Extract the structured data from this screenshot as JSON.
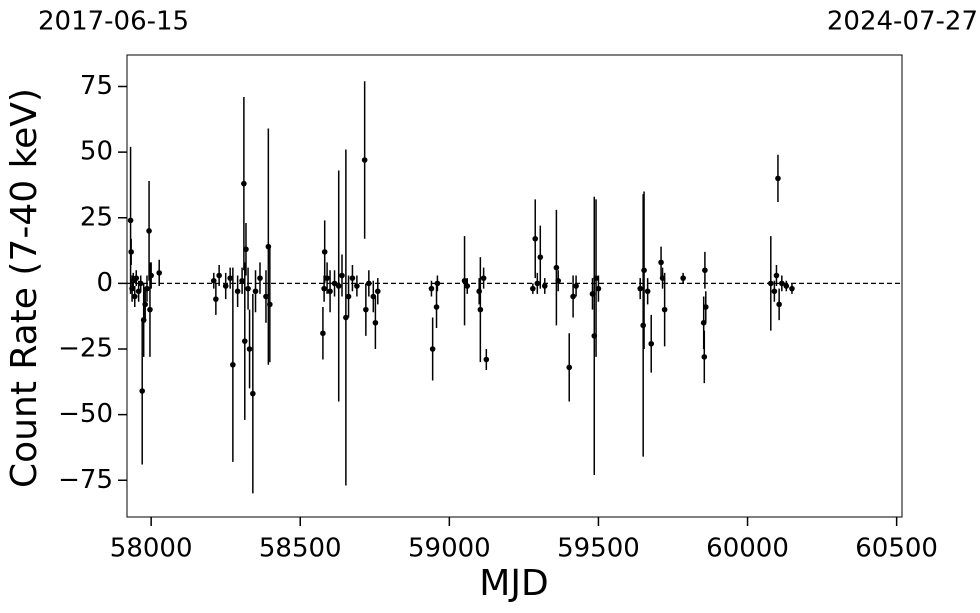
{
  "chart_data": {
    "type": "errorbar",
    "xlabel": "MJD",
    "ylabel": "Count Rate (7-40 keV)",
    "annotations": [
      "2017-06-15",
      "2024-07-27"
    ],
    "xlim": [
      57919,
      60518
    ],
    "ylim": [
      -89,
      87
    ],
    "xticks": [
      58000,
      58500,
      59000,
      59500,
      60000,
      60500
    ],
    "yticks": [
      {
        "value": -75,
        "label": "−75"
      },
      {
        "value": -50,
        "label": "−50"
      },
      {
        "value": -25,
        "label": "−25"
      },
      0,
      25,
      50,
      75
    ],
    "hline": 0,
    "grid": false,
    "series": [
      {
        "color": "#000000",
        "x": [
          57931,
          57933,
          57936,
          57940,
          57945,
          57950,
          57958,
          57965,
          57970,
          57975,
          57980,
          57986,
          57993,
          57996,
          58000,
          58027,
          58210,
          58217,
          58228,
          58250,
          58265,
          58274,
          58290,
          58305,
          58311,
          58314,
          58318,
          58325,
          58330,
          58341,
          58350,
          58365,
          58385,
          58393,
          58398,
          58576,
          58580,
          58582,
          58590,
          58600,
          58615,
          58629,
          58640,
          58653,
          58662,
          58675,
          58690,
          58716,
          58720,
          58730,
          58745,
          58752,
          58760,
          58940,
          58944,
          58957,
          58960,
          59051,
          59060,
          59100,
          59104,
          59115,
          59124,
          59280,
          59288,
          59295,
          59305,
          59320,
          59359,
          59365,
          59402,
          59415,
          59425,
          59480,
          59486,
          59492,
          59500,
          59640,
          59650,
          59653,
          59665,
          59677,
          59710,
          59715,
          59722,
          59784,
          59853,
          59855,
          59857,
          59860,
          60078,
          60090,
          60097,
          60102,
          60106,
          60115,
          60130,
          60149
        ],
        "values": [
          24,
          12,
          -2,
          1,
          -5,
          2,
          -3,
          0,
          -41,
          -14,
          -8,
          -2,
          20,
          -10,
          3,
          4,
          1,
          -6,
          3,
          -1,
          2,
          -31,
          -3,
          1,
          38,
          -22,
          13,
          -2,
          -25,
          -42,
          -3,
          2,
          -5,
          14,
          -8,
          -19,
          -2,
          12,
          2,
          -3,
          0,
          -1,
          3,
          -13,
          -5,
          2,
          -1,
          47,
          -10,
          0,
          -5,
          -15,
          -3,
          -2,
          -25,
          -9,
          0,
          1,
          -1,
          -3,
          -10,
          2,
          -29,
          -2,
          17,
          0,
          10,
          -1,
          6,
          1,
          -32,
          -5,
          -1,
          -4,
          -20,
          2,
          -2,
          -2,
          -16,
          5,
          -3,
          -23,
          8,
          2,
          -10,
          2,
          -15,
          -28,
          5,
          -9,
          0,
          -3,
          3,
          40,
          -8,
          0,
          -1,
          -2
        ],
        "errors": [
          28,
          5,
          5,
          3,
          4,
          3,
          4,
          3,
          28,
          14,
          6,
          5,
          19,
          18,
          5,
          5,
          3,
          6,
          4,
          5,
          4,
          37,
          6,
          5,
          33,
          30,
          10,
          8,
          15,
          38,
          8,
          6,
          10,
          45,
          22,
          10,
          5,
          12,
          6,
          8,
          5,
          44,
          8,
          64,
          8,
          5,
          4,
          30,
          10,
          5,
          6,
          10,
          5,
          3,
          12,
          8,
          3,
          17,
          3,
          5,
          20,
          4,
          4,
          2,
          15,
          4,
          12,
          3,
          22,
          4,
          13,
          8,
          4,
          6,
          53,
          30,
          5,
          4,
          50,
          30,
          5,
          11,
          6,
          4,
          14,
          2,
          10,
          10,
          7,
          6,
          18,
          4,
          4,
          9,
          6,
          3,
          2,
          2
        ]
      }
    ]
  }
}
